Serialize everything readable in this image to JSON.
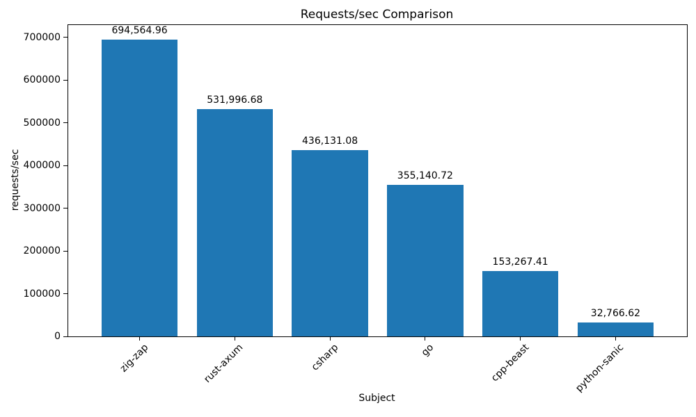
{
  "chart_data": {
    "type": "bar",
    "title": "Requests/sec Comparison",
    "xlabel": "Subject",
    "ylabel": "requests/sec",
    "categories": [
      "zig-zap",
      "rust-axum",
      "csharp",
      "go",
      "cpp-beast",
      "python-sanic"
    ],
    "values": [
      694564.96,
      531996.68,
      436131.08,
      355140.72,
      153267.41,
      32766.62
    ],
    "value_labels": [
      "694,564.96",
      "531,996.68",
      "436,131.08",
      "355,140.72",
      "153,267.41",
      "32,766.62"
    ],
    "yticks": [
      0,
      100000,
      200000,
      300000,
      400000,
      500000,
      600000,
      700000
    ],
    "ytick_labels": [
      "0",
      "100000",
      "200000",
      "300000",
      "400000",
      "500000",
      "600000",
      "700000"
    ],
    "ylim": [
      0,
      729293
    ],
    "xlim_units": [
      -0.75,
      5.75
    ],
    "bar_width_units": 0.8,
    "x_tick_rotation_deg": 45,
    "bar_color": "#1f77b4",
    "axis_color": "#000000",
    "text_color": "#000000",
    "background_color": "#ffffff",
    "grid": false,
    "legend_position": "none"
  }
}
